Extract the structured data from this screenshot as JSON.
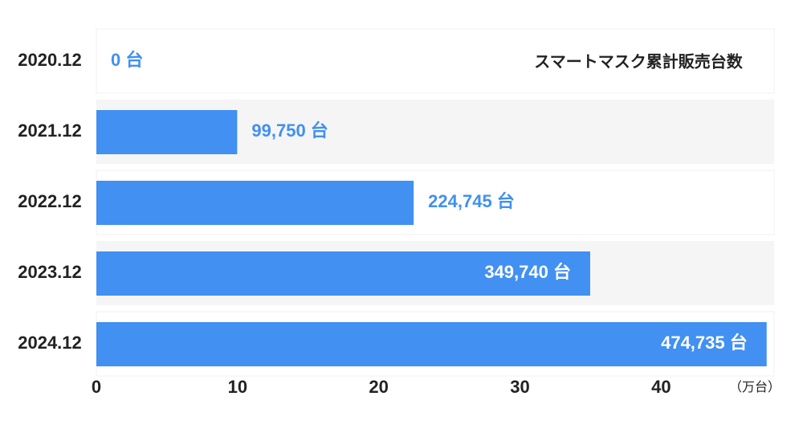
{
  "chart_data": {
    "type": "bar",
    "orientation": "horizontal",
    "title": "スマートマスク累計販売台数",
    "x_label": "（万台）",
    "categories": [
      "2020.12",
      "2021.12",
      "2022.12",
      "2023.12",
      "2024.12"
    ],
    "values": [
      0,
      9.975,
      22.4745,
      34.974,
      47.4735
    ],
    "value_labels": [
      "0 台",
      "99,750 台",
      "224,745 台",
      "349,740 台",
      "474,735 台"
    ],
    "color": "#4190f2",
    "xlim": [
      0,
      48
    ],
    "xticks": [
      0,
      10,
      20,
      30,
      40
    ]
  }
}
